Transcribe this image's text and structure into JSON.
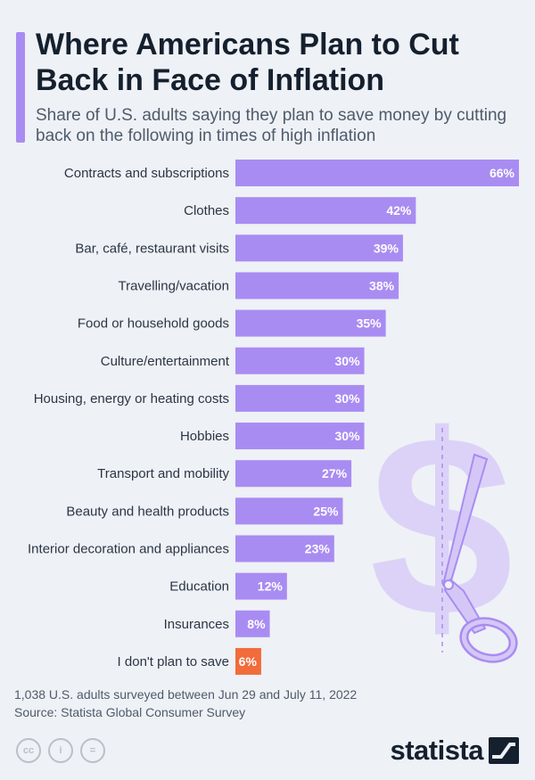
{
  "header": {
    "title": "Where Americans Plan to Cut Back in Face of Inflation",
    "subtitle": "Share of U.S. adults saying they plan to save money by cutting back on the following in times of high inflation"
  },
  "chart_data": {
    "type": "bar",
    "orientation": "horizontal",
    "categories": [
      "Contracts and subscriptions",
      "Clothes",
      "Bar, café, restaurant visits",
      "Travelling/vacation",
      "Food or household goods",
      "Culture/entertainment",
      "Housing, energy or heating costs",
      "Hobbies",
      "Transport and mobility",
      "Beauty and health products",
      "Interior decoration and appliances",
      "Education",
      "Insurances",
      "I don't plan to save"
    ],
    "values": [
      66,
      42,
      39,
      38,
      35,
      30,
      30,
      30,
      27,
      25,
      23,
      12,
      8,
      6
    ],
    "value_labels": [
      "66%",
      "42%",
      "39%",
      "38%",
      "35%",
      "30%",
      "30%",
      "30%",
      "27%",
      "25%",
      "23%",
      "12%",
      "8%",
      "6%"
    ],
    "unit": "%",
    "xlim": [
      0,
      66
    ],
    "grid": false,
    "legend": "none",
    "colors": {
      "bar": "#a98cf2",
      "highlight": "#f26b3a",
      "highlight_category": "I don't plan to save"
    }
  },
  "footer": {
    "note": "1,038 U.S. adults surveyed between Jun 29 and July 11, 2022",
    "source": "Source: Statista Global Consumer Survey",
    "license_icons": [
      "cc-icon",
      "attribution-icon",
      "no-derivatives-icon"
    ],
    "license_glyphs": [
      "cc",
      "i",
      "="
    ],
    "brand": "statista"
  },
  "decor": {
    "icons": [
      "dollar-sign-icon",
      "scissors-icon"
    ],
    "dollar_color": "#dcd2f7",
    "scissors_color": "#b7a5f2"
  }
}
